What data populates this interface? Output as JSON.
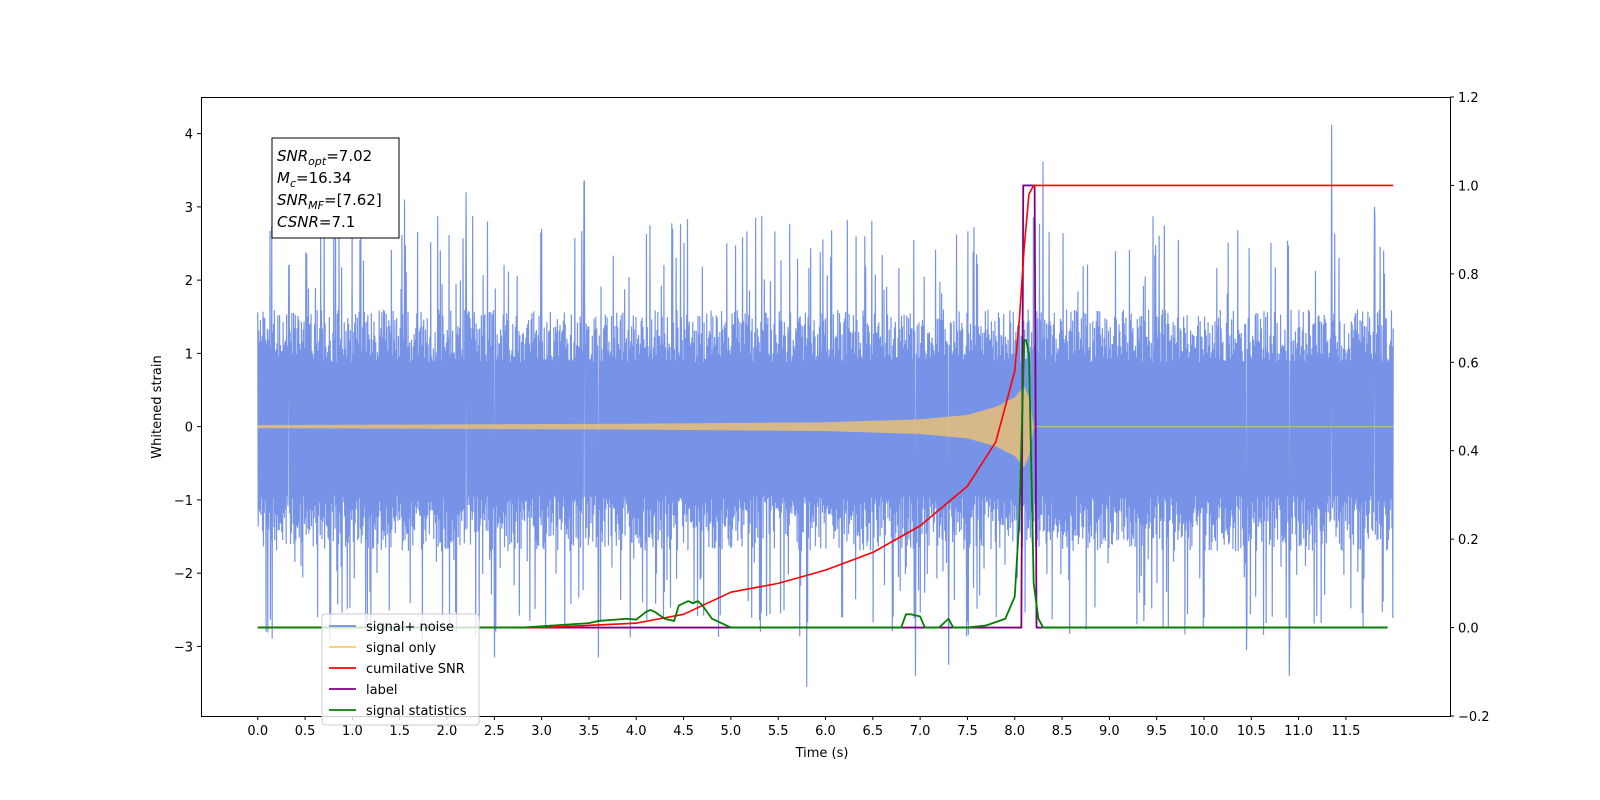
{
  "chart_data": {
    "type": "line",
    "title": "",
    "xlabel": "Time (s)",
    "ylabel": "Whitened strain",
    "y2label": "",
    "xlim": [
      -0.6,
      12.6
    ],
    "ylim": [
      -3.95,
      4.5
    ],
    "y2lim": [
      -0.2,
      1.2
    ],
    "x_ticks": [
      "0.0",
      "0.5",
      "1.0",
      "1.5",
      "2.0",
      "2.5",
      "3.0",
      "3.5",
      "4.0",
      "4.5",
      "5.0",
      "5.5",
      "6.0",
      "6.5",
      "7.0",
      "7.5",
      "8.0",
      "8.5",
      "9.0",
      "9.5",
      "10.0",
      "10.5",
      "11.0",
      "11.5"
    ],
    "y_ticks": [
      4,
      3,
      2,
      1,
      0,
      -1,
      -2,
      -3
    ],
    "y_tick_labels": [
      "4",
      "3",
      "2",
      "1",
      "0",
      "−1",
      "−2",
      "−3"
    ],
    "y2_ticks": [
      1.2,
      1.0,
      0.8,
      0.6,
      0.4,
      0.2,
      0.0,
      -0.2
    ],
    "y2_tick_labels": [
      "1.2",
      "1.0",
      "0.8",
      "0.6",
      "0.4",
      "0.2",
      "0.0",
      "−0.2"
    ],
    "grid": false,
    "legend_placement": "lower-left",
    "info_box": [
      {
        "base": "SNR",
        "sub": "opt",
        "value": "=7.02"
      },
      {
        "base": "M",
        "sub": "c",
        "value": "=16.34"
      },
      {
        "base": "SNR",
        "sub": "MF",
        "value": "=[7.62]"
      },
      {
        "base": "CSNR",
        "sub": "",
        "value": "=7.1"
      }
    ],
    "legend": [
      {
        "label": "signal+ noise",
        "color": "#6f8de6"
      },
      {
        "label": "signal only",
        "color": "#ffc861"
      },
      {
        "label": "cumilative SNR",
        "color": "#ff0000"
      },
      {
        "label": "label",
        "color": "#800080"
      },
      {
        "label": "signal statistics",
        "color": "#008000"
      }
    ],
    "series": [
      {
        "name": "signal+ noise",
        "axis": "left",
        "color": "#6f8de6",
        "x_range": [
          0.0,
          12.0
        ],
        "envelope_typical": [
          -1.7,
          1.6
        ],
        "spike_points": [
          [
            0.33,
            2.2
          ],
          [
            0.7,
            3.2
          ],
          [
            1.08,
            2.55
          ],
          [
            1.55,
            3.1
          ],
          [
            2.2,
            3.2
          ],
          [
            2.5,
            -3.15
          ],
          [
            3.45,
            3.35
          ],
          [
            3.6,
            -3.15
          ],
          [
            5.8,
            -3.55
          ],
          [
            6.95,
            -3.4
          ],
          [
            7.3,
            -3.25
          ],
          [
            8.3,
            3.62
          ],
          [
            10.45,
            -3.05
          ],
          [
            10.9,
            -3.4
          ],
          [
            11.35,
            4.12
          ],
          [
            11.8,
            3.0
          ]
        ]
      },
      {
        "name": "signal only",
        "axis": "left",
        "color": "#ffc861",
        "description_points": [
          [
            0.0,
            0.02
          ],
          [
            4.0,
            0.04
          ],
          [
            6.0,
            0.06
          ],
          [
            7.0,
            0.1
          ],
          [
            7.5,
            0.16
          ],
          [
            7.8,
            0.27
          ],
          [
            8.0,
            0.4
          ],
          [
            8.1,
            0.55
          ],
          [
            8.15,
            0.4
          ],
          [
            8.2,
            0.0
          ],
          [
            12.0,
            0.0
          ]
        ]
      },
      {
        "name": "cumilative SNR",
        "axis": "right",
        "color": "#ff0000",
        "x": [
          0.0,
          3.0,
          4.0,
          4.5,
          5.0,
          5.5,
          6.0,
          6.5,
          7.0,
          7.5,
          7.8,
          8.0,
          8.05,
          8.1,
          8.15,
          8.2,
          12.0
        ],
        "values": [
          0.0,
          0.0,
          0.01,
          0.03,
          0.08,
          0.1,
          0.13,
          0.17,
          0.23,
          0.32,
          0.42,
          0.58,
          0.7,
          0.86,
          0.98,
          1.0,
          1.0
        ]
      },
      {
        "name": "label",
        "axis": "right",
        "color": "#800080",
        "x": [
          0.0,
          8.07,
          8.09,
          8.21,
          8.23,
          11.94
        ],
        "values": [
          0.0,
          0.0,
          1.0,
          1.0,
          0.0,
          0.0
        ]
      },
      {
        "name": "signal statistics",
        "axis": "right",
        "color": "#008000",
        "x": [
          0.0,
          2.8,
          3.5,
          3.6,
          3.9,
          4.0,
          4.1,
          4.15,
          4.2,
          4.3,
          4.4,
          4.45,
          4.55,
          4.6,
          4.65,
          4.7,
          4.8,
          5.0,
          5.2,
          5.4,
          6.0,
          6.8,
          6.85,
          6.9,
          7.0,
          7.05,
          7.1,
          7.2,
          7.3,
          7.35,
          7.4,
          7.5,
          7.7,
          7.9,
          8.0,
          8.05,
          8.1,
          8.12,
          8.15,
          8.2,
          8.25,
          8.3,
          8.4,
          11.94
        ],
        "values": [
          0.0,
          0.0,
          0.01,
          0.015,
          0.02,
          0.018,
          0.035,
          0.04,
          0.035,
          0.02,
          0.015,
          0.05,
          0.06,
          0.055,
          0.06,
          0.05,
          0.02,
          0.0,
          0.0,
          0.0,
          0.0,
          0.0,
          0.03,
          0.03,
          0.025,
          0.0,
          0.0,
          0.0,
          0.02,
          0.0,
          0.0,
          0.0,
          0.005,
          0.02,
          0.07,
          0.25,
          0.65,
          0.65,
          0.62,
          0.1,
          0.02,
          0.0,
          0.0,
          0.0
        ]
      }
    ]
  }
}
